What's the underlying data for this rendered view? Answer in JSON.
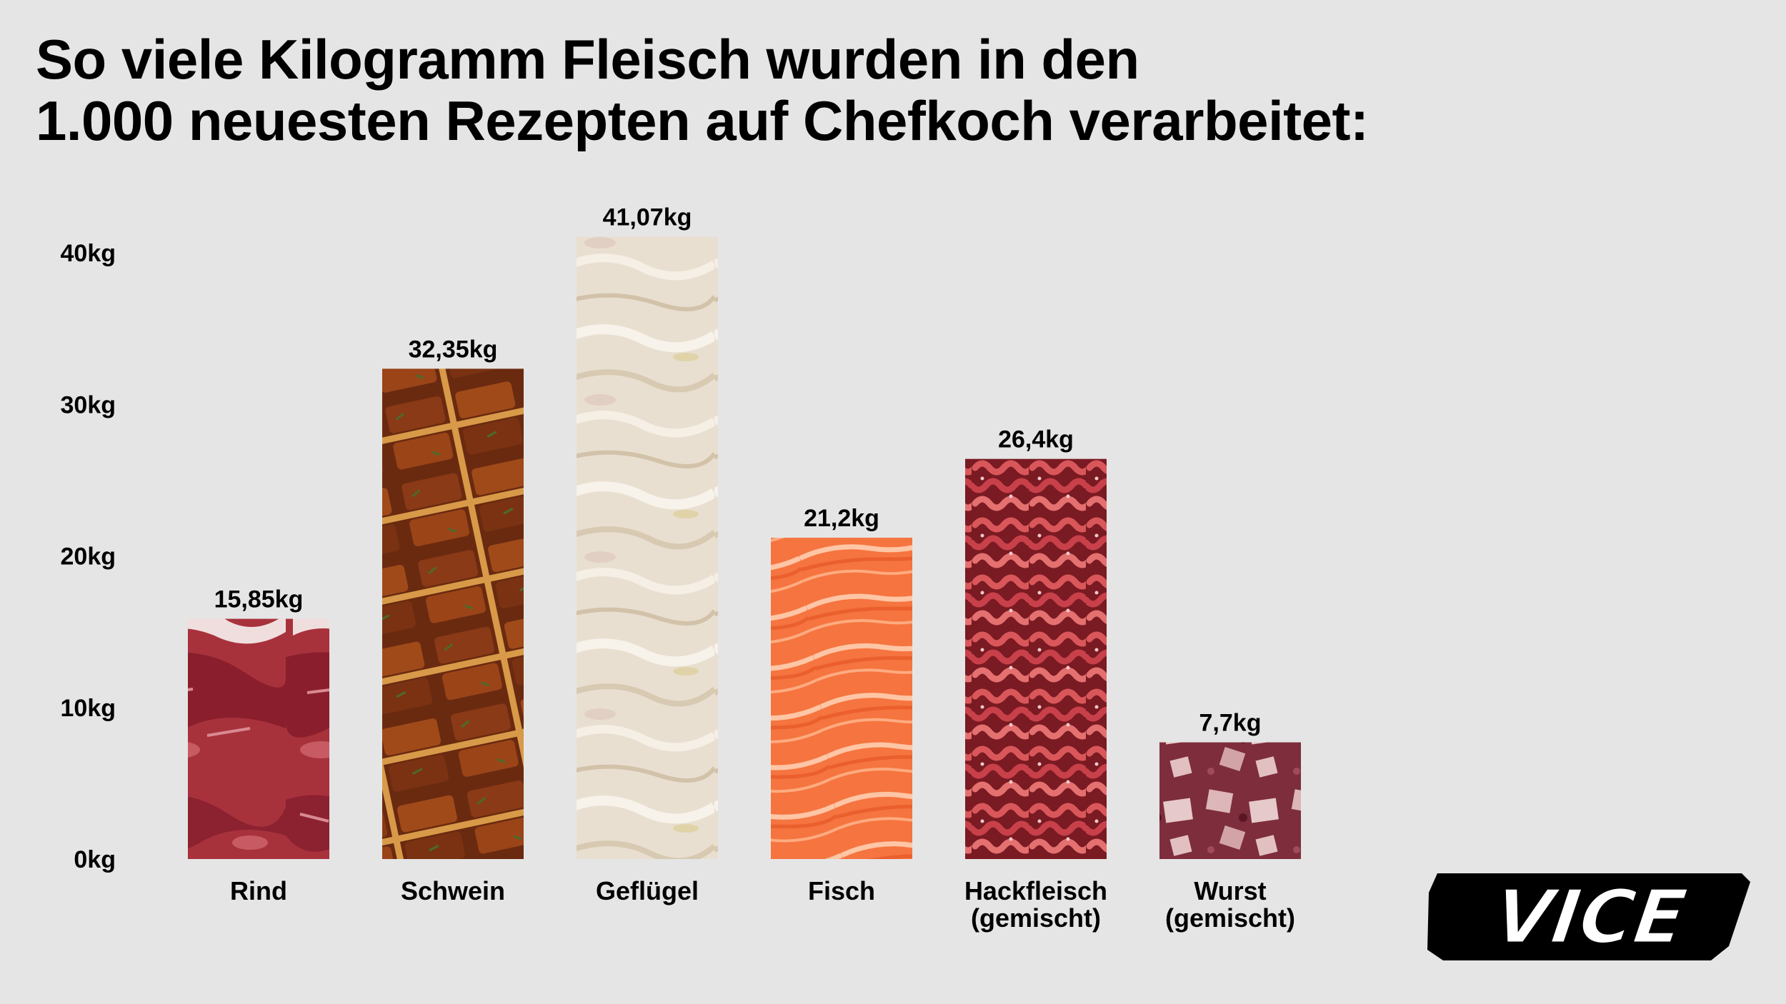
{
  "title": {
    "line1": "So viele Kilogramm Fleisch wurden in den",
    "line2": "1.000 neuesten Rezepten auf Chefkoch verarbeitet:"
  },
  "logo": {
    "text": "VICE",
    "icon": "vice-logo"
  },
  "chart_data": {
    "type": "bar",
    "title": "So viele Kilogramm Fleisch wurden in den 1.000 neuesten Rezepten auf Chefkoch verarbeitet:",
    "xlabel": "",
    "ylabel": "",
    "ylim": [
      0,
      40
    ],
    "yticks": [
      {
        "value": 0,
        "label": "0kg"
      },
      {
        "value": 10,
        "label": "10kg"
      },
      {
        "value": 20,
        "label": "20kg"
      },
      {
        "value": 30,
        "label": "30kg"
      },
      {
        "value": 40,
        "label": "40kg"
      }
    ],
    "grid": false,
    "legend": "none",
    "categories": [
      {
        "lines": [
          "Rind"
        ],
        "value": 15.85,
        "label": "15,85kg",
        "texture": "beef",
        "colors": [
          "#a8323c",
          "#c85a63",
          "#8c2130"
        ]
      },
      {
        "lines": [
          "Schwein"
        ],
        "value": 32.35,
        "label": "32,35kg",
        "texture": "pork",
        "colors": [
          "#8a3a16",
          "#c8843a",
          "#4a1e0c"
        ]
      },
      {
        "lines": [
          "Geflügel"
        ],
        "value": 41.07,
        "label": "41,07kg",
        "texture": "poultry",
        "colors": [
          "#e8dccb",
          "#f3ede2",
          "#d4c4ad"
        ]
      },
      {
        "lines": [
          "Fisch"
        ],
        "value": 21.2,
        "label": "21,2kg",
        "texture": "salmon",
        "colors": [
          "#f5743f",
          "#ffb38a",
          "#e85a2a"
        ]
      },
      {
        "lines": [
          "Hackfleisch",
          "(gemischt)"
        ],
        "value": 26.4,
        "label": "26,4kg",
        "texture": "mince",
        "colors": [
          "#b8323a",
          "#e06a6a",
          "#7a1a22"
        ]
      },
      {
        "lines": [
          "Wurst",
          "(gemischt)"
        ],
        "value": 7.7,
        "label": "7,7kg",
        "texture": "sausage",
        "colors": [
          "#8c3a46",
          "#d8a8ae",
          "#6a2030"
        ]
      }
    ]
  }
}
